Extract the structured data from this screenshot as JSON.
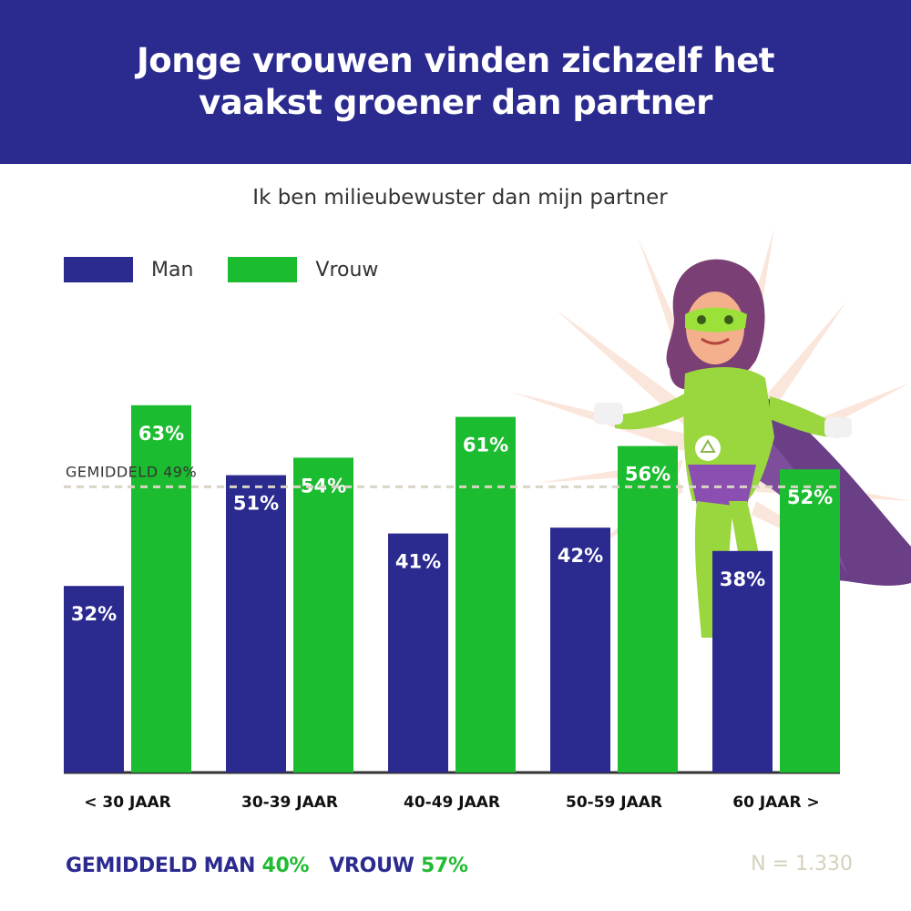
{
  "header": {
    "title": "Jonge vrouwen vinden zichzelf het vaakst groener dan partner"
  },
  "colors": {
    "man": "#2b2a8f",
    "vrouw": "#1cbc30",
    "header_bg": "#2b2a8f",
    "avg_line": "#d9d5c5"
  },
  "chart_data": {
    "type": "bar",
    "title": "Ik ben milieubewuster dan mijn partner",
    "categories": [
      "< 30 JAAR",
      "30-39 JAAR",
      "40-49 JAAR",
      "50-59 JAAR",
      "60 JAAR >"
    ],
    "series": [
      {
        "name": "Man",
        "values": [
          32,
          51,
          41,
          42,
          38
        ],
        "labels": [
          "32%",
          "51%",
          "41%",
          "42%",
          "38%"
        ]
      },
      {
        "name": "Vrouw",
        "values": [
          63,
          54,
          61,
          56,
          52
        ],
        "labels": [
          "63%",
          "54%",
          "61%",
          "56%",
          "52%"
        ]
      }
    ],
    "reference_line": {
      "value": 49,
      "label": "GEMIDDELD 49%"
    },
    "ylim": [
      0,
      100
    ],
    "legend": "top-left"
  },
  "footer": {
    "man_label": "GEMIDDELD MAN",
    "man_value": "40%",
    "vrouw_label": "VROUW",
    "vrouw_value": "57%",
    "n_text": "N = 1.330"
  },
  "illustration": {
    "icon": "superhero-woman-illustration"
  }
}
